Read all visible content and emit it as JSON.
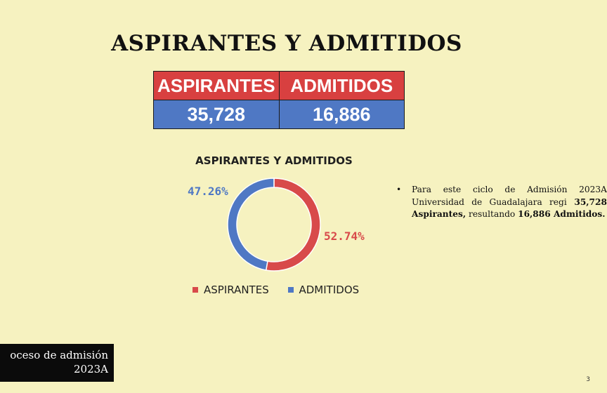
{
  "slide": {
    "title": "ASPIRANTES Y ADMITIDOS",
    "page_number": "3"
  },
  "stats_table": {
    "headers": [
      "ASPIRANTES",
      "ADMITIDOS"
    ],
    "values": [
      "35,728",
      "16,886"
    ],
    "header_color": "#d84040",
    "value_color": "#4f78c4"
  },
  "chart_data": {
    "type": "pie",
    "variant": "donut",
    "title": "ASPIRANTES Y ADMITIDOS",
    "slices": [
      {
        "name": "ASPIRANTES",
        "value": 52.74,
        "label": "52.74%",
        "color": "#d84a4a"
      },
      {
        "name": "ADMITIDOS",
        "value": 47.26,
        "label": "47.26%",
        "color": "#4f78c4"
      }
    ],
    "legend": [
      "ASPIRANTES",
      "ADMITIDOS"
    ],
    "legend_position": "bottom"
  },
  "note": {
    "bullet": "•",
    "segments": [
      "Para este ciclo de Admisión 2023A Universidad de Guadalajara regi",
      " 35,728 Aspirantes,",
      " resultando ",
      "16,886 Admitidos."
    ]
  },
  "footer": {
    "line1": "oceso de admisión",
    "line2": "2023A"
  }
}
